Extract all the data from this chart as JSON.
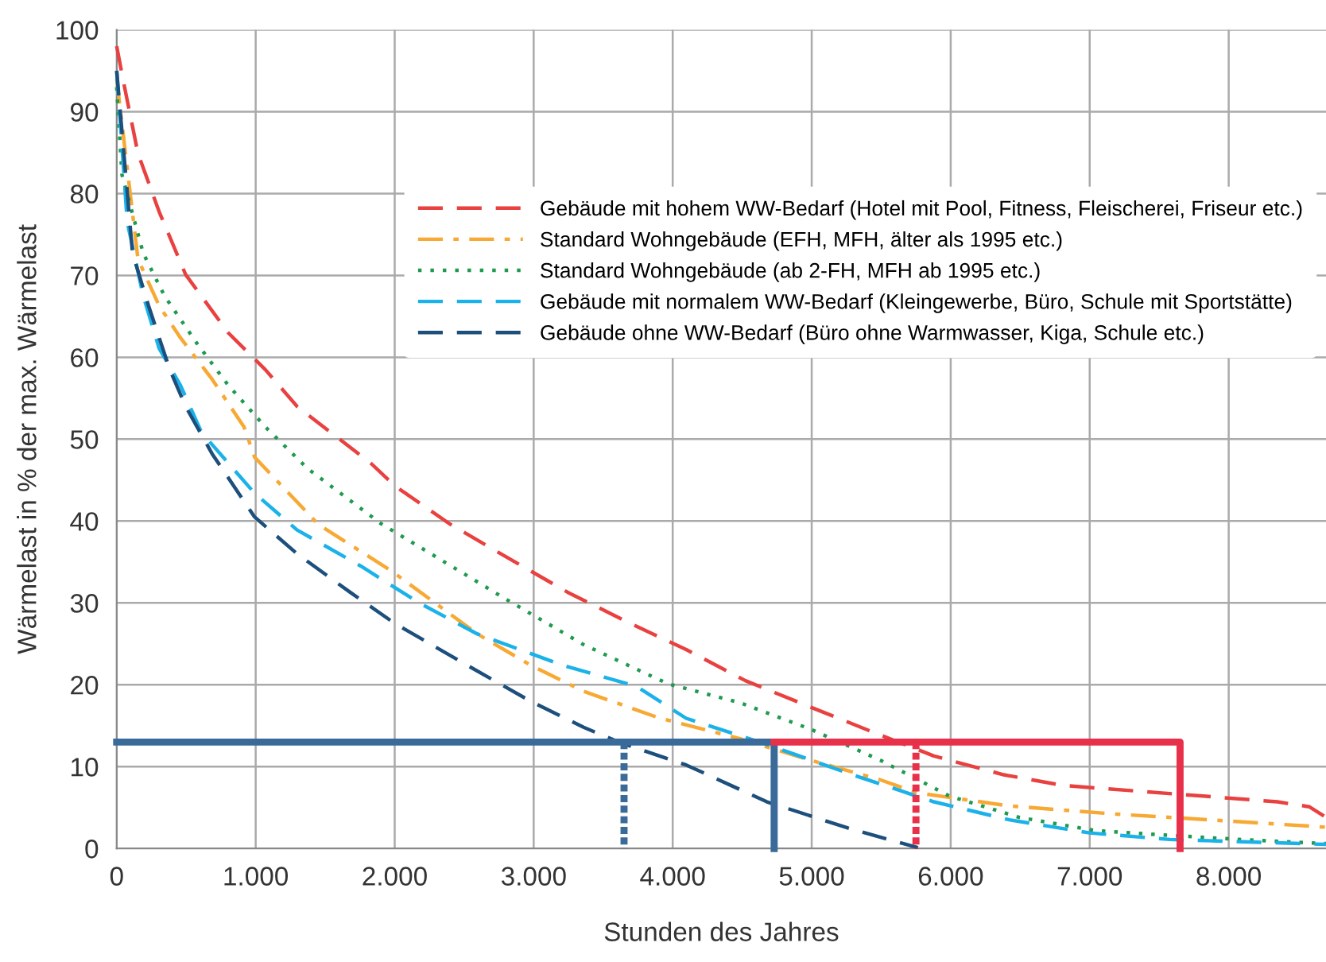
{
  "chart_data": {
    "type": "line",
    "xlabel": "Stunden des Jahres",
    "ylabel": "Wärmelast in % der max. Wärmelast",
    "xlim": [
      0,
      8700
    ],
    "ylim": [
      0,
      100
    ],
    "xticks": [
      0,
      {
        "value": 1000,
        "label": "1.000"
      },
      {
        "value": 2000,
        "label": "2.000"
      },
      {
        "value": 3000,
        "label": "3.000"
      },
      {
        "value": 4000,
        "label": "4.000"
      },
      {
        "value": 5000,
        "label": "5.000"
      },
      {
        "value": 6000,
        "label": "6.000"
      },
      {
        "value": 7000,
        "label": "7.000"
      },
      {
        "value": 8000,
        "label": "8.000"
      }
    ],
    "yticks": [
      0,
      10,
      20,
      30,
      40,
      50,
      60,
      70,
      80,
      90,
      100
    ],
    "grid": true,
    "legend": "upper right",
    "marker": "none",
    "series": [
      {
        "name": "Gebäude mit hohem WW-Bedarf (Hotel mit Pool, Fitness, Fleischerei, Friseur etc.)",
        "color": "#e8413f",
        "line_style": "dashed",
        "x": [
          0,
          46,
          153,
          305,
          496,
          802,
          1069,
          1298,
          1832,
          2000,
          2400,
          2824,
          3244,
          3683,
          4097,
          4523,
          4988,
          5414,
          5879,
          6382,
          6808,
          7350,
          7816,
          8350,
          8579,
          8700
        ],
        "values": [
          98,
          93.9,
          84.9,
          77.8,
          70.1,
          63,
          58.5,
          54,
          47,
          44.3,
          39.6,
          35.4,
          31.3,
          27.6,
          24.3,
          20.5,
          17.3,
          14.4,
          11.3,
          9,
          7.7,
          7,
          6.4,
          5.7,
          5.1,
          3.8
        ]
      },
      {
        "name": "Standard Wohngebäude (EFH, MFH, älter als 1995 etc.)",
        "color": "#f7a934",
        "line_style": "dashdot",
        "x": [
          0,
          153,
          305,
          458,
          687,
          916,
          992,
          1450,
          1985,
          2290,
          2595,
          2977,
          3359,
          3893,
          4485,
          4988,
          5492,
          5760,
          6421,
          7190,
          7961,
          8700
        ],
        "values": [
          94,
          72,
          66.3,
          62.4,
          57.3,
          51.5,
          47.8,
          39.6,
          33.8,
          30,
          26.2,
          22.4,
          19.2,
          16,
          13.4,
          10.8,
          8.4,
          6.8,
          5.2,
          4.2,
          3.4,
          2.6
        ]
      },
      {
        "name": "Standard Wohngebäude (ab 2-FH, MFH ab 1995 etc.)",
        "color": "#1f9a4f",
        "line_style": "dotted",
        "x": [
          0,
          38,
          191,
          344,
          573,
          802,
          1069,
          1374,
          1908,
          2290,
          2786,
          3359,
          3969,
          4485,
          4988,
          5492,
          5992,
          6494,
          7035,
          7575,
          8196,
          8700
        ],
        "values": [
          93,
          82.3,
          72.7,
          67.5,
          61.8,
          56.6,
          51.5,
          46.4,
          39.6,
          35.7,
          30.6,
          24.9,
          20.1,
          17.8,
          14.6,
          10.8,
          6.4,
          3.8,
          2.2,
          1.6,
          1,
          0.6
        ]
      },
      {
        "name": "Gebäude mit normalem WW-Bedarf (Kleingewerbe, Büro, Schule mit Sportstätte)",
        "color": "#1ab2e8",
        "line_style": "dashed",
        "x": [
          0,
          76,
          191,
          305,
          458,
          611,
          992,
          1298,
          1756,
          2176,
          2595,
          3206,
          3740,
          4097,
          4678,
          5260,
          5879,
          6421,
          7000,
          7575,
          8700
        ],
        "values": [
          95,
          76.5,
          67.5,
          61.1,
          56.6,
          50.8,
          43.4,
          38.9,
          34.5,
          30,
          26.2,
          22.4,
          19.8,
          15.9,
          12.7,
          9.2,
          5.7,
          3.5,
          1.9,
          1.1,
          0.5
        ]
      },
      {
        "name": "Gebäude ohne WW-Bedarf (Büro ohne Warmwasser, Kiga, Schule etc.)",
        "color": "#1d4f7c",
        "line_style": "dashed",
        "x": [
          0,
          114,
          229,
          382,
          496,
          687,
          992,
          1298,
          1679,
          2000,
          2519,
          2977,
          3359,
          3626,
          4097,
          4678,
          5260,
          5764
        ],
        "values": [
          95,
          72.7,
          66.3,
          58.5,
          54,
          48.2,
          40.5,
          36,
          31.3,
          27.5,
          22.4,
          18,
          14.8,
          12.9,
          10.2,
          5.7,
          2.5,
          0.1
        ]
      },
      {
        "color": "#3a6a99",
        "line_style": "solid",
        "x": [
          0,
          4730,
          4730
        ],
        "values": [
          13,
          13,
          0
        ]
      },
      {
        "color": "#e8304a",
        "line_style": "solid",
        "x": [
          4730,
          7650,
          7650
        ],
        "values": [
          13,
          13,
          0
        ]
      },
      {
        "color": "#3a6a99",
        "line_style": "dotted",
        "x": [
          3650,
          3650
        ],
        "values": [
          13,
          0
        ]
      },
      {
        "color": "#e8304a",
        "line_style": "dotted",
        "x": [
          5750,
          5750
        ],
        "values": [
          13,
          0
        ]
      }
    ]
  }
}
